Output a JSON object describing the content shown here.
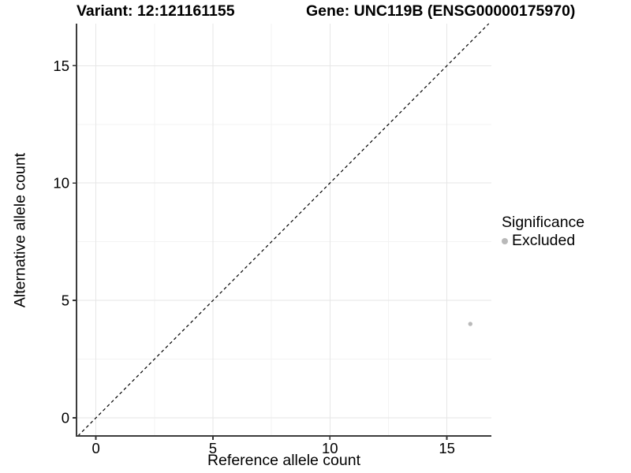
{
  "header": {
    "variant_title": "Variant: 12:121161155",
    "gene_title": "Gene: UNC119B (ENSG00000175970)"
  },
  "chart_data": {
    "type": "scatter",
    "xlabel": "Reference allele count",
    "ylabel": "Alternative allele count",
    "xlim": [
      -0.83,
      16.9
    ],
    "ylim": [
      -0.77,
      16.79
    ],
    "x_ticks": [
      0,
      5,
      10,
      15
    ],
    "y_ticks": [
      0,
      5,
      10,
      15
    ],
    "x_minor_ticks": [
      2.5,
      7.5,
      12.5
    ],
    "y_minor_ticks": [
      2.5,
      7.5,
      12.5
    ],
    "grid": "major+minor",
    "identity_line": {
      "style": "dashed",
      "equation": "y = x",
      "color": "#000000"
    },
    "series": [
      {
        "name": "Excluded",
        "color": "#b9b9b9",
        "points": [
          [
            16,
            4
          ]
        ]
      }
    ],
    "legend": {
      "title": "Significance",
      "position": "right",
      "items": [
        {
          "label": "Excluded",
          "color": "#b9b9b9"
        }
      ]
    }
  },
  "colors": {
    "background": "#ffffff",
    "grid_major": "#e6e6e6",
    "grid_minor": "#f3f3f3",
    "axis_line": "#3c3c3c",
    "tick_mark": "#333333",
    "text": "#000000"
  }
}
